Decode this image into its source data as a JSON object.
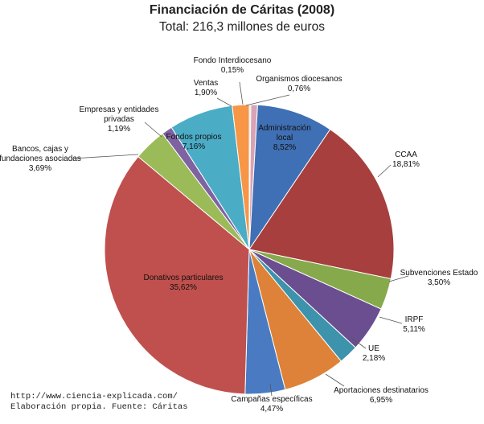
{
  "chart_data": {
    "type": "pie",
    "title": "Financiación de Cáritas (2008)",
    "subtitle": "Total: 216,3 millones de euros",
    "unit": "%",
    "slices": [
      {
        "name": "Organismos diocesanos",
        "value": 0.76,
        "value_label": "0,76%",
        "label_lines": [
          "Organismos diocesanos"
        ],
        "color": "#D9A3B6"
      },
      {
        "name": "Administración local",
        "value": 8.52,
        "value_label": "8,52%",
        "label_lines": [
          "Administración",
          "local"
        ],
        "color": "#3F6FB4"
      },
      {
        "name": "CCAA",
        "value": 18.81,
        "value_label": "18,81%",
        "label_lines": [
          "CCAA"
        ],
        "color": "#A63F3D"
      },
      {
        "name": "Subvenciones Estado",
        "value": 3.5,
        "value_label": "3,50%",
        "label_lines": [
          "Subvenciones Estado"
        ],
        "color": "#86A94B"
      },
      {
        "name": "IRPF",
        "value": 5.11,
        "value_label": "5,11%",
        "label_lines": [
          "IRPF"
        ],
        "color": "#6B4E8F"
      },
      {
        "name": "UE",
        "value": 2.18,
        "value_label": "2,18%",
        "label_lines": [
          "UE"
        ],
        "color": "#3C93AB"
      },
      {
        "name": "Aportaciones destinatarios",
        "value": 6.95,
        "value_label": "6,95%",
        "label_lines": [
          "Aportaciones destinatarios"
        ],
        "color": "#DD8238"
      },
      {
        "name": "Campañas específicas",
        "value": 4.47,
        "value_label": "4,47%",
        "label_lines": [
          "Campañas específicas"
        ],
        "color": "#4A7BC2"
      },
      {
        "name": "Donativos particulares",
        "value": 35.62,
        "value_label": "35,62%",
        "label_lines": [
          "Donativos particulares"
        ],
        "color": "#C0504D"
      },
      {
        "name": "Bancos, cajas y fundaciones asociadas",
        "value": 3.69,
        "value_label": "3,69%",
        "label_lines": [
          "Bancos, cajas y",
          "fundaciones asociadas"
        ],
        "color": "#9BBB59"
      },
      {
        "name": "Empresas y entidades privadas",
        "value": 1.19,
        "value_label": "1,19%",
        "label_lines": [
          "Empresas y entidades",
          "privadas"
        ],
        "color": "#7E62A1"
      },
      {
        "name": "Fondos propios",
        "value": 7.16,
        "value_label": "7,16%",
        "label_lines": [
          "Fondos propios"
        ],
        "color": "#4BACC6"
      },
      {
        "name": "Ventas",
        "value": 1.9,
        "value_label": "1,90%",
        "label_lines": [
          "Ventas"
        ],
        "color": "#F79646"
      },
      {
        "name": "Fondo Interdiocesano",
        "value": 0.15,
        "value_label": "0,15%",
        "label_lines": [
          "Fondo Interdiocesano"
        ],
        "color": "#C9D9EA"
      }
    ]
  },
  "source": {
    "url": "http://www.ciencia-explicada.com/",
    "credit": "Elaboración propia. Fuente: Cáritas"
  }
}
